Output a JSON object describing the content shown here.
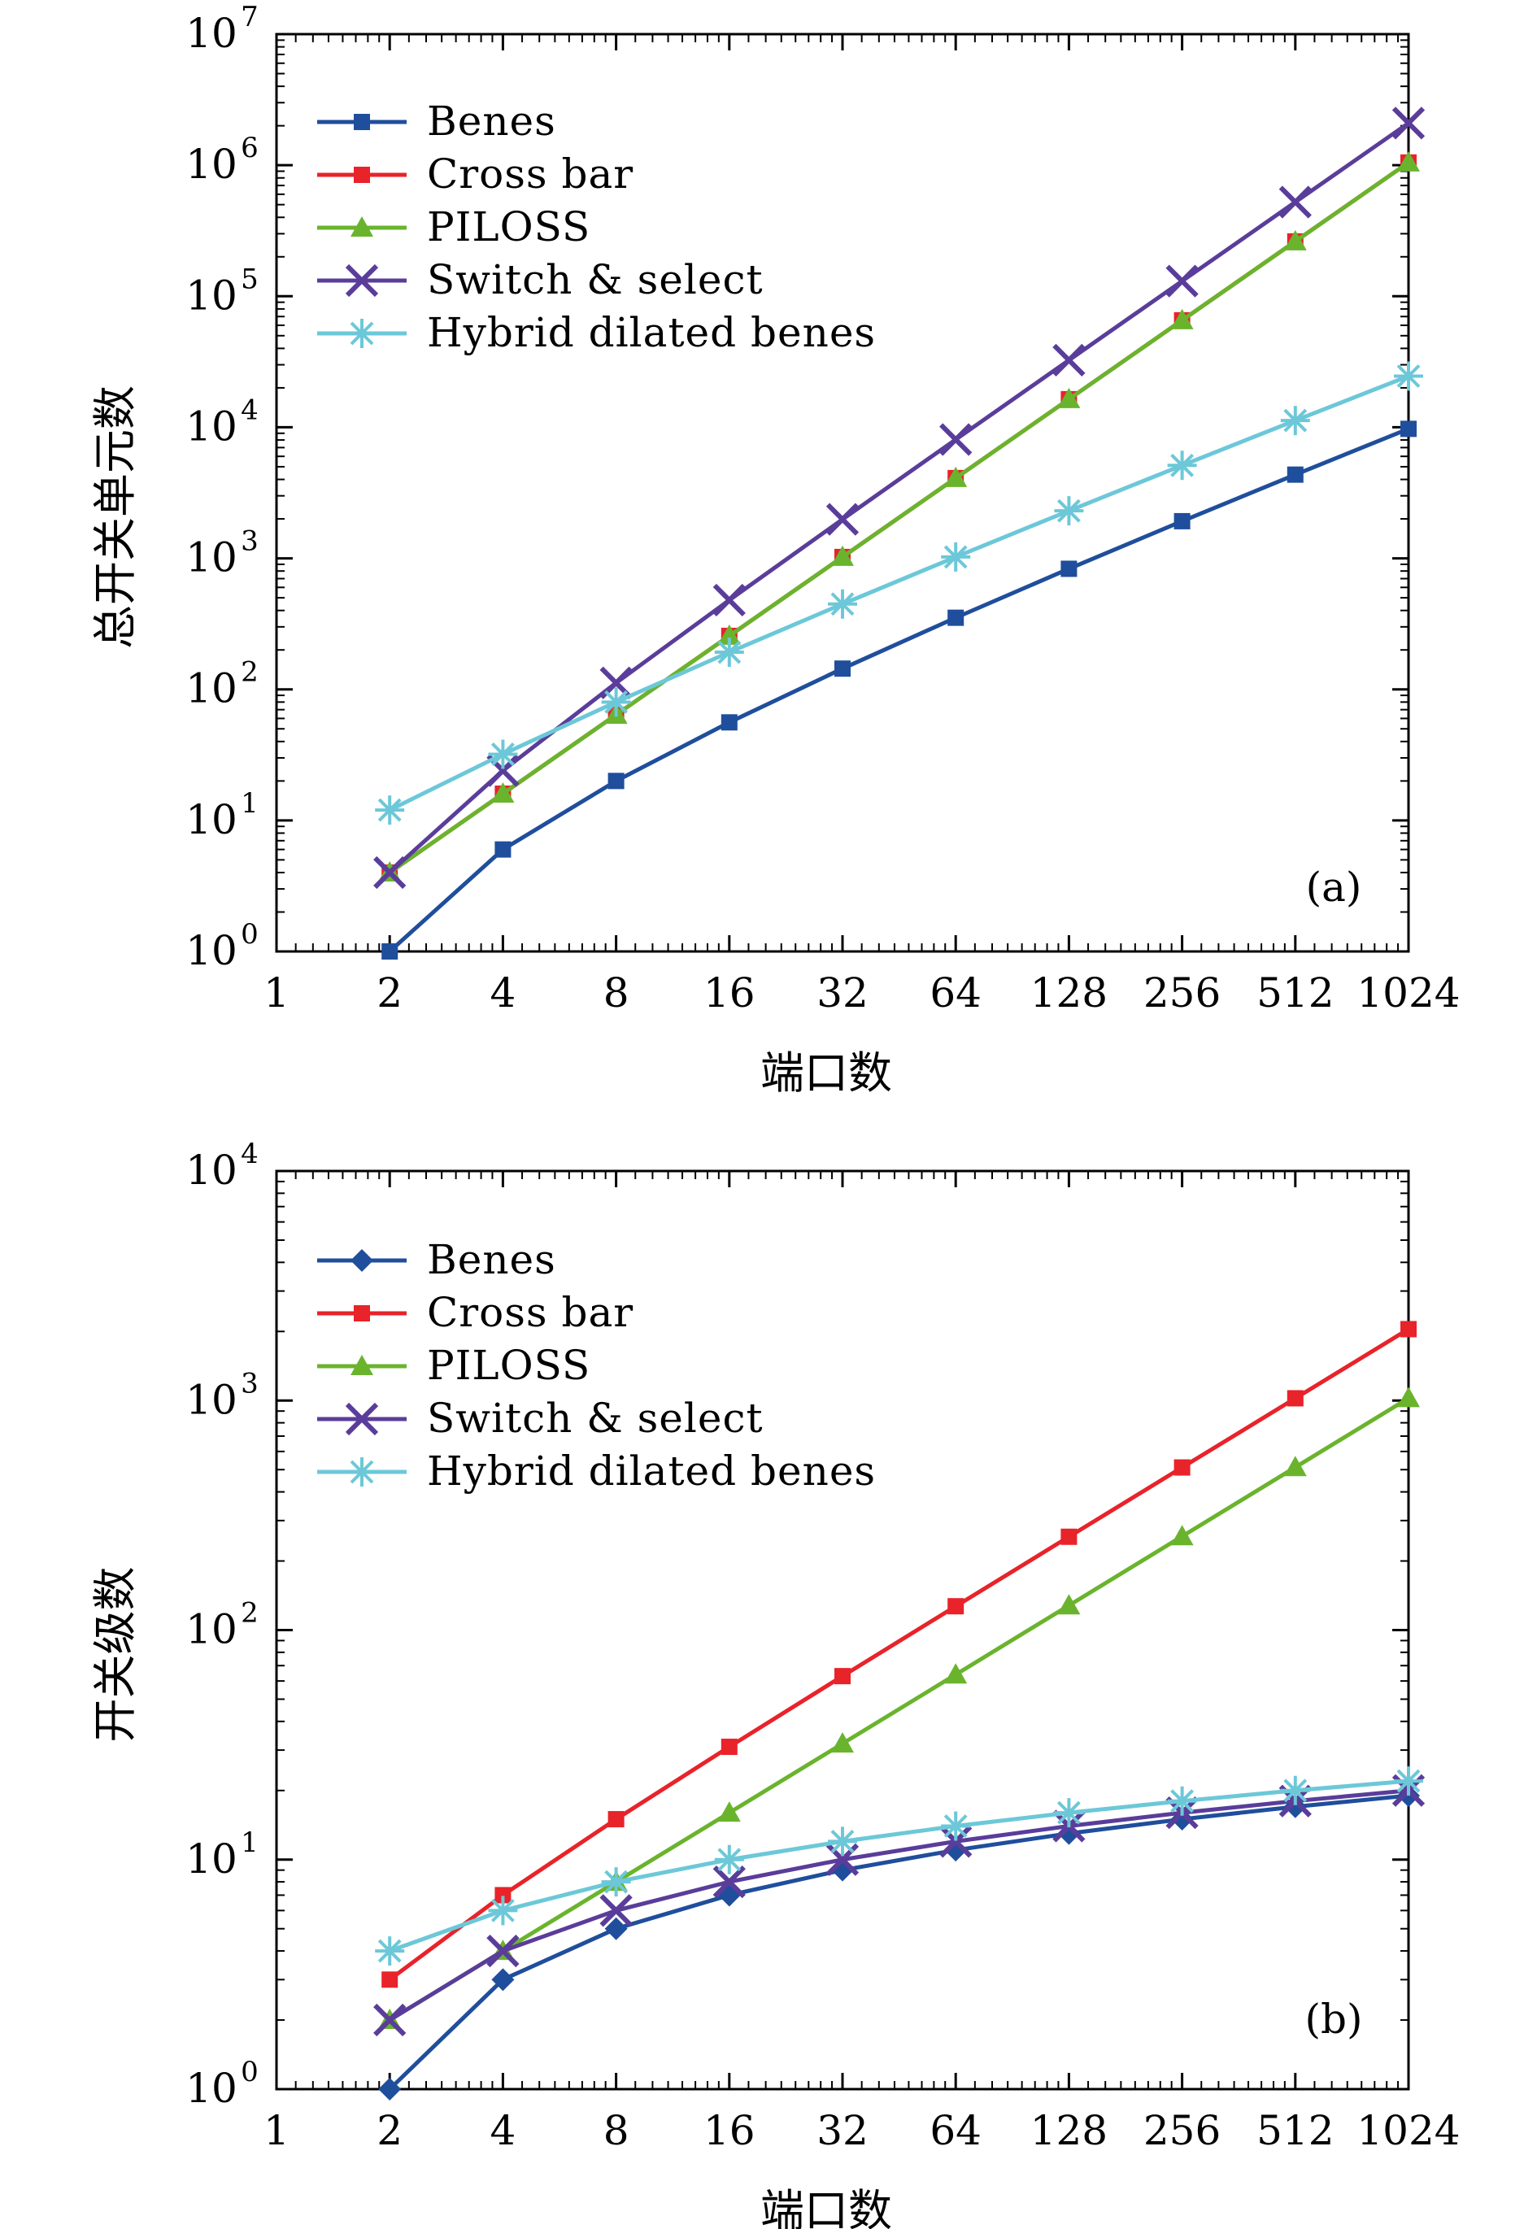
{
  "chart_data": [
    {
      "type": "line",
      "panel_label": "(a)",
      "xlabel": "端口数",
      "ylabel": "总开关单元数",
      "x_scale": "log2",
      "y_scale": "log10",
      "xlim": [
        1,
        1024
      ],
      "ylim": [
        1,
        10000000
      ],
      "x_ticks": [
        "1",
        "2",
        "4",
        "8",
        "16",
        "32",
        "64",
        "128",
        "256",
        "512",
        "1024"
      ],
      "y_ticks": [
        {
          "base": "10",
          "exp": "0"
        },
        {
          "base": "10",
          "exp": "1"
        },
        {
          "base": "10",
          "exp": "2"
        },
        {
          "base": "10",
          "exp": "3"
        },
        {
          "base": "10",
          "exp": "4"
        },
        {
          "base": "10",
          "exp": "5"
        },
        {
          "base": "10",
          "exp": "6"
        },
        {
          "base": "10",
          "exp": "7"
        }
      ],
      "legend_position": "top-left",
      "x": [
        2,
        4,
        8,
        16,
        32,
        64,
        128,
        256,
        512,
        1024
      ],
      "series": [
        {
          "name": "Benes",
          "color": "#1f4e9c",
          "marker": "square",
          "values": [
            1,
            6,
            20,
            56,
            144,
            352,
            832,
            1920,
            4352,
            9728
          ]
        },
        {
          "name": "Cross bar",
          "color": "#e8232a",
          "marker": "square",
          "values": [
            4,
            16,
            64,
            256,
            1024,
            4096,
            16384,
            65536,
            262144,
            1048576
          ]
        },
        {
          "name": "PILOSS",
          "color": "#6ab42d",
          "marker": "triangle",
          "values": [
            4,
            16,
            64,
            256,
            1024,
            4096,
            16384,
            65536,
            262144,
            1048576
          ]
        },
        {
          "name": "Switch & select",
          "color": "#5a3d9a",
          "marker": "x",
          "values": [
            4,
            24,
            112,
            480,
            1984,
            8064,
            32512,
            130560,
            523264,
            2095104
          ]
        },
        {
          "name": "Hybrid dilated benes",
          "color": "#6cc8d8",
          "marker": "asterisk",
          "values": [
            12,
            32,
            80,
            192,
            448,
            1024,
            2304,
            5120,
            11264,
            24576
          ]
        }
      ]
    },
    {
      "type": "line",
      "panel_label": "(b)",
      "xlabel": "端口数",
      "ylabel": "开关级数",
      "x_scale": "log2",
      "y_scale": "log10",
      "xlim": [
        1,
        1024
      ],
      "ylim": [
        1,
        10000
      ],
      "x_ticks": [
        "1",
        "2",
        "4",
        "8",
        "16",
        "32",
        "64",
        "128",
        "256",
        "512",
        "1024"
      ],
      "y_ticks": [
        {
          "base": "10",
          "exp": "0"
        },
        {
          "base": "10",
          "exp": "1"
        },
        {
          "base": "10",
          "exp": "2"
        },
        {
          "base": "10",
          "exp": "3"
        },
        {
          "base": "10",
          "exp": "4"
        }
      ],
      "legend_position": "top-left",
      "x": [
        2,
        4,
        8,
        16,
        32,
        64,
        128,
        256,
        512,
        1024
      ],
      "series": [
        {
          "name": "Benes",
          "color": "#1f4e9c",
          "marker": "diamond",
          "values": [
            1,
            3,
            5,
            7,
            9,
            11,
            13,
            15,
            17,
            19
          ]
        },
        {
          "name": "Cross bar",
          "color": "#e8232a",
          "marker": "square",
          "values": [
            3,
            7,
            15,
            31,
            63,
            127,
            255,
            511,
            1023,
            2047
          ]
        },
        {
          "name": "PILOSS",
          "color": "#6ab42d",
          "marker": "triangle",
          "values": [
            2,
            4,
            8,
            16,
            32,
            64,
            128,
            256,
            512,
            1024
          ]
        },
        {
          "name": "Switch & select",
          "color": "#5a3d9a",
          "marker": "x",
          "values": [
            2,
            4,
            6,
            8,
            10,
            12,
            14,
            16,
            18,
            20
          ]
        },
        {
          "name": "Hybrid dilated benes",
          "color": "#6cc8d8",
          "marker": "asterisk",
          "values": [
            4,
            6,
            8,
            10,
            12,
            14,
            16,
            18,
            20,
            22
          ]
        }
      ]
    }
  ]
}
